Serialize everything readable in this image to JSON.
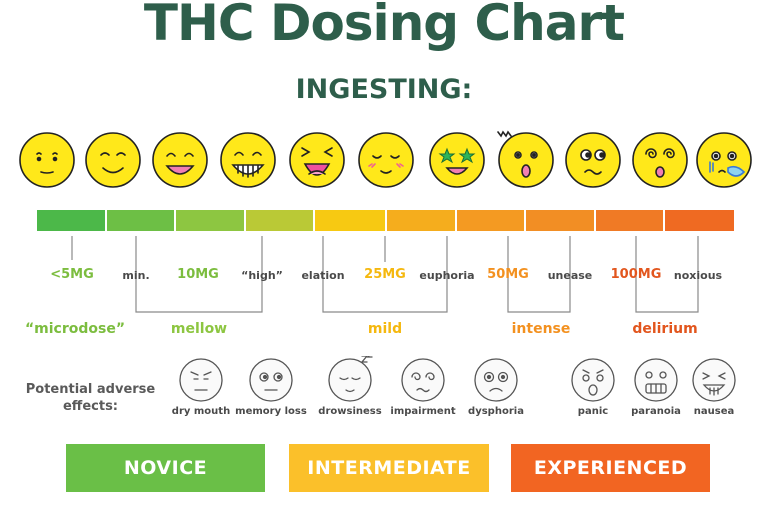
{
  "title": "THC Dosing Chart",
  "subtitle": "INGESTING:",
  "faces": [
    {
      "icon": "neutral-face-icon"
    },
    {
      "icon": "slight-smile-face-icon"
    },
    {
      "icon": "smile-face-icon"
    },
    {
      "icon": "grin-face-icon"
    },
    {
      "icon": "laughing-face-icon"
    },
    {
      "icon": "content-blush-face-icon"
    },
    {
      "icon": "star-eyes-face-icon"
    },
    {
      "icon": "shocked-face-icon"
    },
    {
      "icon": "uneasy-face-icon"
    },
    {
      "icon": "dizzy-face-icon"
    },
    {
      "icon": "nauseous-face-icon"
    }
  ],
  "scale_colors": [
    "#4cb849",
    "#6dbf45",
    "#8dc641",
    "#bac936",
    "#f7c912",
    "#f5ad1d",
    "#f49a22",
    "#f28e24",
    "#f07a25",
    "#ef6a22",
    "#ee4423"
  ],
  "dose_labels": {
    "microdose_amount": "<5MG",
    "min": "min.",
    "mellow_amount": "10MG",
    "high": "“high”",
    "elation": "elation",
    "mild_amount": "25MG",
    "euphoria": "euphoria",
    "intense_amount": "50MG",
    "unease": "unease",
    "delirium_amount": "100MG",
    "noxious": "noxious"
  },
  "categories": {
    "microdose": "“microdose”",
    "mellow": "mellow",
    "mild": "mild",
    "intense": "intense",
    "delirium": "delirium"
  },
  "adverse": {
    "title_line1": "Potential adverse",
    "title_line2": "effects:",
    "effects": [
      {
        "label": "dry mouth",
        "icon": "dry-mouth-face-icon"
      },
      {
        "label": "memory loss",
        "icon": "memory-loss-face-icon"
      },
      {
        "label": "drowsiness",
        "icon": "drowsy-face-icon"
      },
      {
        "label": "impairment",
        "icon": "impaired-face-icon"
      },
      {
        "label": "dysphoria",
        "icon": "dysphoria-face-icon"
      },
      {
        "label": "panic",
        "icon": "panic-face-icon"
      },
      {
        "label": "paranoia",
        "icon": "paranoia-face-icon"
      },
      {
        "label": "nausea",
        "icon": "nausea-face-icon"
      }
    ]
  },
  "levels": {
    "novice": "NOVICE",
    "intermediate": "INTERMEDIATE",
    "experienced": "EXPERIENCED"
  },
  "colors": {
    "title": "#2e5e4b",
    "novice": "#6abf47",
    "intermediate": "#fbc02a",
    "experienced": "#f26522",
    "face_fill": "#ffe81a"
  }
}
